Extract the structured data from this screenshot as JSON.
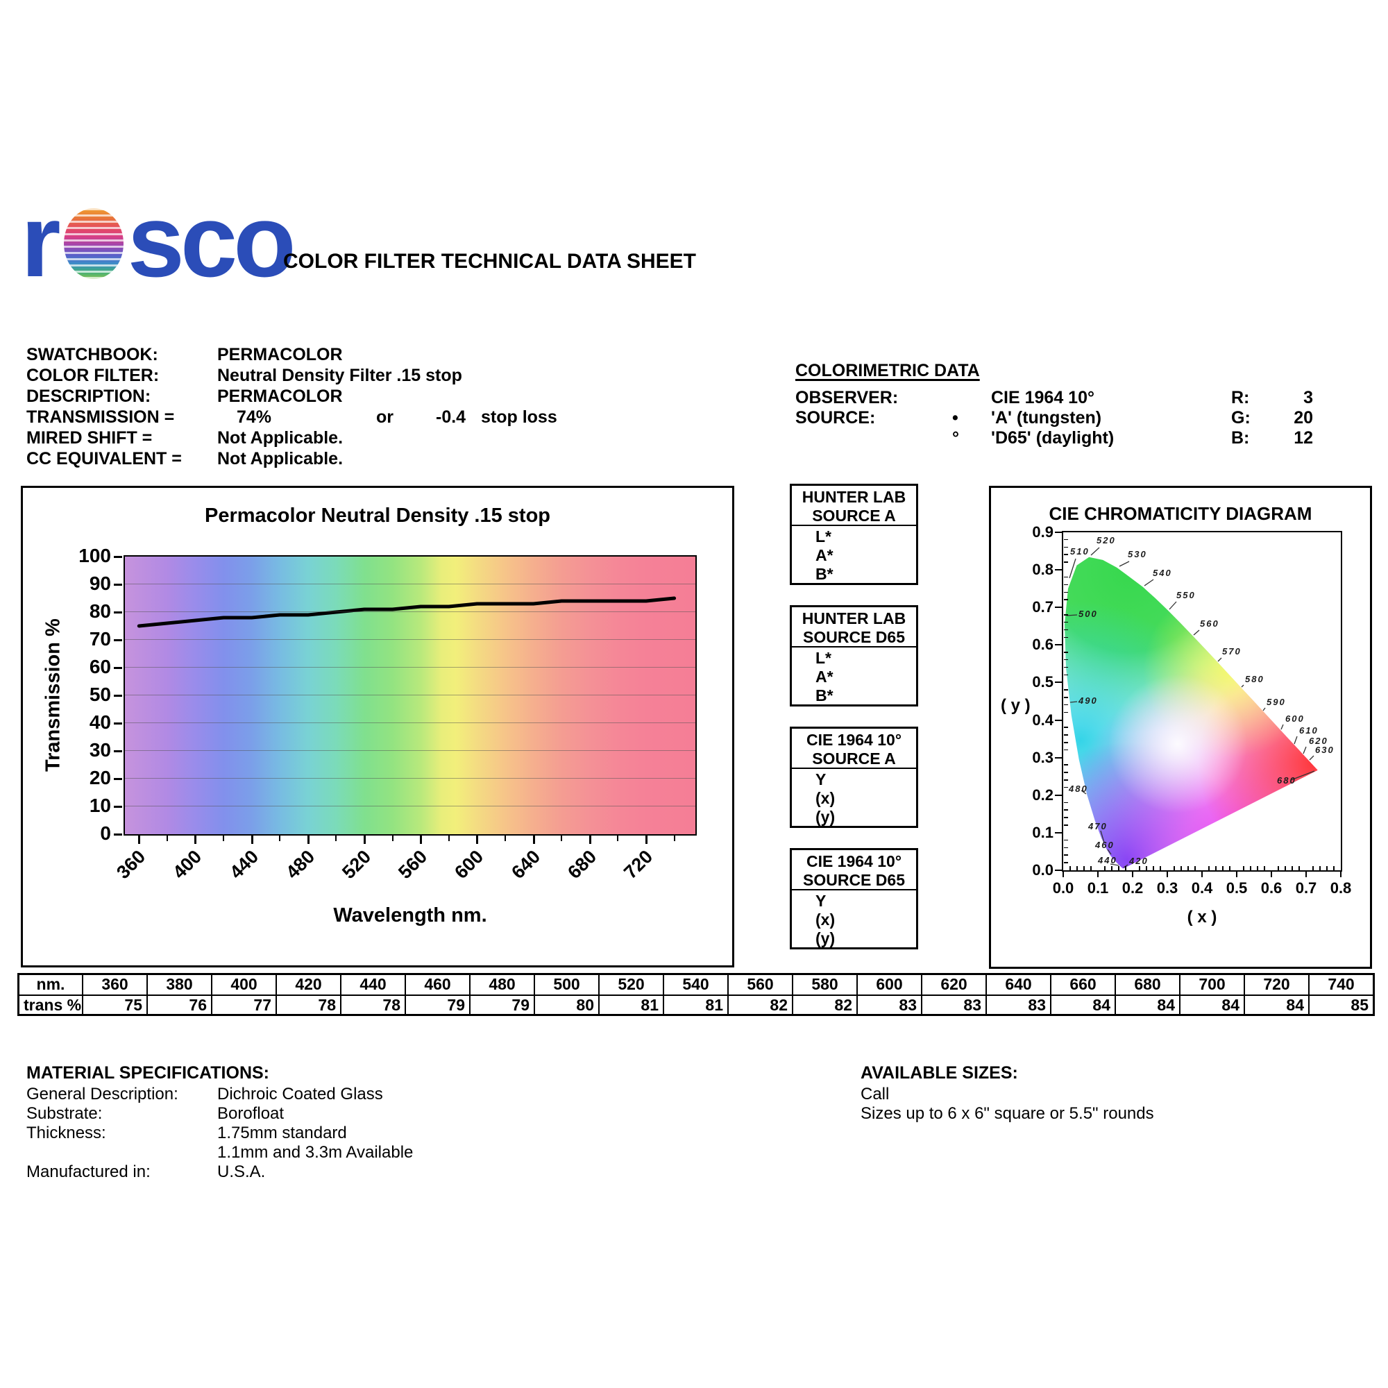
{
  "header": {
    "logo_r": "r",
    "logo_sco": "sco",
    "title": "COLOR FILTER TECHNICAL DATA SHEET"
  },
  "colors": {
    "logo_blue": "#2b4db8",
    "curve": "#000000"
  },
  "filter_info": {
    "swatchbook_label": "SWATCHBOOK:",
    "swatchbook_value": "PERMACOLOR",
    "color_filter_label": "COLOR FILTER:",
    "color_filter_value": "Neutral Density Filter .15 stop",
    "description_label": "DESCRIPTION:",
    "description_value": "PERMACOLOR",
    "transmission_label": "TRANSMISSION =",
    "transmission_value": "74%",
    "transmission_or": "or",
    "stop_loss_value": "-0.4",
    "stop_loss_label": "stop loss",
    "mired_label": "MIRED SHIFT =",
    "mired_value": "Not Applicable.",
    "cc_label": "CC EQUIVALENT =",
    "cc_value": "Not Applicable."
  },
  "colorimetric": {
    "heading": "COLORIMETRIC DATA",
    "observer_label": "OBSERVER:",
    "observer_value": "CIE 1964 10°",
    "source_label": "SOURCE:",
    "source_a_bullet": "•",
    "source_a_value": "'A' (tungsten)",
    "source_d65_bullet": "°",
    "source_d65_value": "'D65' (daylight)",
    "r_label": "R:",
    "r_value": "3",
    "g_label": "G:",
    "g_value": "20",
    "b_label": "B:",
    "b_value": "12"
  },
  "chart_data": [
    {
      "id": "transmission-spectrum-chart",
      "type": "line",
      "title": "Permacolor Neutral Density .15 stop",
      "xlabel": "Wavelength nm.",
      "ylabel": "Transmission %",
      "x": [
        360,
        380,
        400,
        420,
        440,
        460,
        480,
        500,
        520,
        540,
        560,
        580,
        600,
        620,
        640,
        660,
        680,
        700,
        720,
        740
      ],
      "series": [
        {
          "name": "Transmission %",
          "values": [
            75,
            76,
            77,
            78,
            78,
            79,
            79,
            80,
            81,
            81,
            82,
            82,
            83,
            83,
            83,
            84,
            84,
            84,
            84,
            85
          ]
        }
      ],
      "xlim": [
        350,
        755
      ],
      "ylim": [
        0,
        100
      ],
      "x_tick_labels": [
        "360",
        "400",
        "440",
        "480",
        "520",
        "560",
        "600",
        "640",
        "680",
        "720"
      ],
      "y_tick_labels": [
        "0",
        "10",
        "20",
        "30",
        "40",
        "50",
        "60",
        "70",
        "80",
        "90",
        "100"
      ],
      "grid": true,
      "legend_position": "none",
      "background": "visible-light-spectrum-gradient"
    },
    {
      "id": "cie-chromaticity-diagram",
      "type": "area",
      "title": "CIE CHROMATICITY DIAGRAM",
      "xlabel": "( x )",
      "ylabel": "( y )",
      "xlim": [
        0.0,
        0.8
      ],
      "ylim": [
        0.0,
        0.9
      ],
      "x_tick_labels": [
        "0.0",
        "0.1",
        "0.2",
        "0.3",
        "0.4",
        "0.5",
        "0.6",
        "0.7",
        "0.8"
      ],
      "y_tick_labels": [
        "0.0",
        "0.1",
        "0.2",
        "0.3",
        "0.4",
        "0.5",
        "0.6",
        "0.7",
        "0.8",
        "0.9"
      ],
      "wavelength_labels": [
        "510",
        "520",
        "530",
        "540",
        "550",
        "560",
        "570",
        "580",
        "590",
        "600",
        "610",
        "620",
        "630",
        "680",
        "500",
        "490",
        "480",
        "470",
        "460",
        "440",
        "420"
      ],
      "description": "CIE chromaticity horseshoe (spectral locus) filled with full color gamut"
    }
  ],
  "stat_boxes": [
    {
      "title1": "HUNTER LAB",
      "title2": "SOURCE A",
      "rows": [
        "L*",
        "A*",
        "B*"
      ]
    },
    {
      "title1": "HUNTER LAB",
      "title2": "SOURCE D65",
      "rows": [
        "L*",
        "A*",
        "B*"
      ]
    },
    {
      "title1": "CIE 1964 10°",
      "title2": "SOURCE A",
      "rows": [
        "Y",
        "(x)",
        "(y)"
      ]
    },
    {
      "title1": "CIE 1964 10°",
      "title2": "SOURCE D65",
      "rows": [
        "Y",
        "(x)",
        "(y)"
      ]
    }
  ],
  "data_table": {
    "col0_row0": "nm.",
    "col0_row1": "trans %",
    "wavelengths": [
      "360",
      "380",
      "400",
      "420",
      "440",
      "460",
      "480",
      "500",
      "520",
      "540",
      "560",
      "580",
      "600",
      "620",
      "640",
      "660",
      "680",
      "700",
      "720",
      "740"
    ],
    "transmission": [
      "75",
      "76",
      "77",
      "78",
      "78",
      "79",
      "79",
      "80",
      "81",
      "81",
      "82",
      "82",
      "83",
      "83",
      "83",
      "84",
      "84",
      "84",
      "84",
      "85"
    ]
  },
  "material_specs": {
    "heading": "MATERIAL SPECIFICATIONS:",
    "rows": [
      [
        "General Description:",
        "Dichroic Coated Glass"
      ],
      [
        "Substrate:",
        "Borofloat"
      ],
      [
        "Thickness:",
        "1.75mm standard"
      ],
      [
        "",
        "1.1mm and 3.3m Available"
      ],
      [
        "Manufactured in:",
        "U.S.A."
      ]
    ]
  },
  "available_sizes": {
    "heading": "AVAILABLE SIZES:",
    "lines": [
      "Call",
      "Sizes up to 6 x 6\" square or 5.5\" rounds"
    ]
  }
}
